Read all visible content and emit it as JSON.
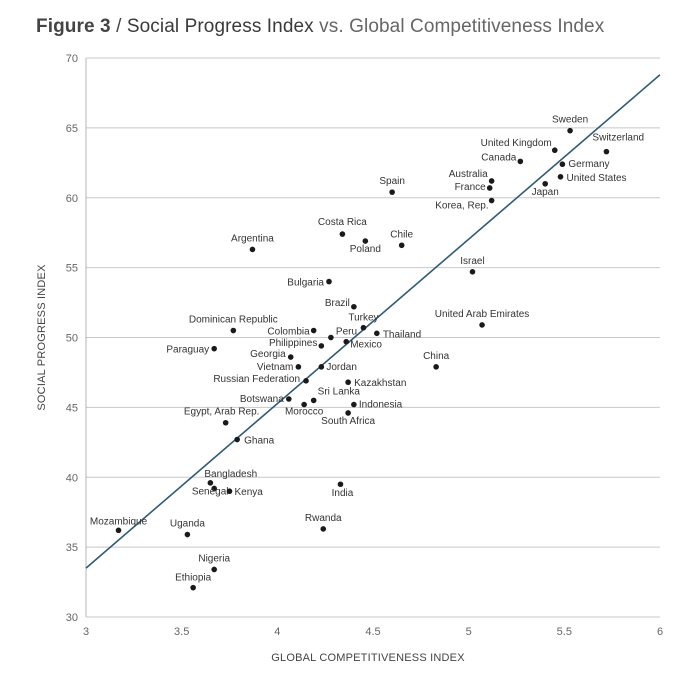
{
  "title": {
    "figure": "Figure 3",
    "separator": " / ",
    "main": "Social Progress Index",
    "vs": " vs. Global Competitiveness Index"
  },
  "chart_data": {
    "type": "scatter",
    "xlabel": "GLOBAL COMPETITIVENESS INDEX",
    "ylabel": "SOCIAL PROGRESS INDEX",
    "xlim": [
      3,
      6
    ],
    "ylim": [
      30,
      70
    ],
    "xticks": [
      "3",
      "3.5",
      "4",
      "4.5",
      "5",
      "5.5",
      "6"
    ],
    "yticks": [
      "30",
      "35",
      "40",
      "45",
      "50",
      "55",
      "60",
      "65",
      "70"
    ],
    "grid": true,
    "trendline": {
      "x": [
        3,
        6
      ],
      "y": [
        33.5,
        68.8
      ]
    },
    "colors": {
      "point": "#1a1a1a",
      "trend": "#2f5a78",
      "grid": "#c8c8c8"
    },
    "points": [
      {
        "label": "Sweden",
        "x": 5.53,
        "y": 64.8
      },
      {
        "label": "Switzerland",
        "x": 5.72,
        "y": 63.3
      },
      {
        "label": "United Kingdom",
        "x": 5.45,
        "y": 63.4
      },
      {
        "label": "Canada",
        "x": 5.27,
        "y": 62.6
      },
      {
        "label": "Germany",
        "x": 5.49,
        "y": 62.4
      },
      {
        "label": "Australia",
        "x": 5.12,
        "y": 61.2
      },
      {
        "label": "United States",
        "x": 5.48,
        "y": 61.5
      },
      {
        "label": "France",
        "x": 5.11,
        "y": 60.7
      },
      {
        "label": "Japan",
        "x": 5.4,
        "y": 61.0
      },
      {
        "label": "Korea, Rep.",
        "x": 5.12,
        "y": 59.8
      },
      {
        "label": "Spain",
        "x": 4.6,
        "y": 60.4
      },
      {
        "label": "Costa Rica",
        "x": 4.34,
        "y": 57.4
      },
      {
        "label": "Chile",
        "x": 4.65,
        "y": 56.6
      },
      {
        "label": "Poland",
        "x": 4.46,
        "y": 56.9
      },
      {
        "label": "Argentina",
        "x": 3.87,
        "y": 56.3
      },
      {
        "label": "Israel",
        "x": 5.02,
        "y": 54.7
      },
      {
        "label": "Bulgaria",
        "x": 4.27,
        "y": 54.0
      },
      {
        "label": "Brazil",
        "x": 4.4,
        "y": 52.2
      },
      {
        "label": "United Arab Emirates",
        "x": 5.07,
        "y": 50.9
      },
      {
        "label": "Turkey",
        "x": 4.45,
        "y": 50.7
      },
      {
        "label": "Colombia",
        "x": 4.19,
        "y": 50.5
      },
      {
        "label": "Dominican Republic",
        "x": 3.77,
        "y": 50.5
      },
      {
        "label": "Peru",
        "x": 4.28,
        "y": 50.0
      },
      {
        "label": "Thailand",
        "x": 4.52,
        "y": 50.3
      },
      {
        "label": "Philippines",
        "x": 4.23,
        "y": 49.4
      },
      {
        "label": "Mexico",
        "x": 4.36,
        "y": 49.7
      },
      {
        "label": "Paraguay",
        "x": 3.67,
        "y": 49.2
      },
      {
        "label": "Georgia",
        "x": 4.07,
        "y": 48.6
      },
      {
        "label": "Vietnam",
        "x": 4.11,
        "y": 47.9
      },
      {
        "label": "Jordan",
        "x": 4.23,
        "y": 47.9
      },
      {
        "label": "China",
        "x": 4.83,
        "y": 47.9
      },
      {
        "label": "Russian Federation",
        "x": 4.15,
        "y": 46.9
      },
      {
        "label": "Kazakhstan",
        "x": 4.37,
        "y": 46.8
      },
      {
        "label": "Botswana",
        "x": 4.06,
        "y": 45.6
      },
      {
        "label": "Sri Lanka",
        "x": 4.19,
        "y": 45.5
      },
      {
        "label": "Morocco",
        "x": 4.14,
        "y": 45.2
      },
      {
        "label": "Indonesia",
        "x": 4.4,
        "y": 45.2
      },
      {
        "label": "South Africa",
        "x": 4.37,
        "y": 44.6
      },
      {
        "label": "Egypt, Arab Rep.",
        "x": 3.73,
        "y": 43.9
      },
      {
        "label": "Ghana",
        "x": 3.79,
        "y": 42.7
      },
      {
        "label": "Bangladesh",
        "x": 3.65,
        "y": 39.6
      },
      {
        "label": "India",
        "x": 4.33,
        "y": 39.5
      },
      {
        "label": "Senegal",
        "x": 3.67,
        "y": 39.2
      },
      {
        "label": "Kenya",
        "x": 3.75,
        "y": 39.0
      },
      {
        "label": "Mozambique",
        "x": 3.17,
        "y": 36.2
      },
      {
        "label": "Uganda",
        "x": 3.53,
        "y": 35.9
      },
      {
        "label": "Rwanda",
        "x": 4.24,
        "y": 36.3
      },
      {
        "label": "Nigeria",
        "x": 3.67,
        "y": 33.4
      },
      {
        "label": "Ethiopia",
        "x": 3.56,
        "y": 32.1
      }
    ]
  }
}
